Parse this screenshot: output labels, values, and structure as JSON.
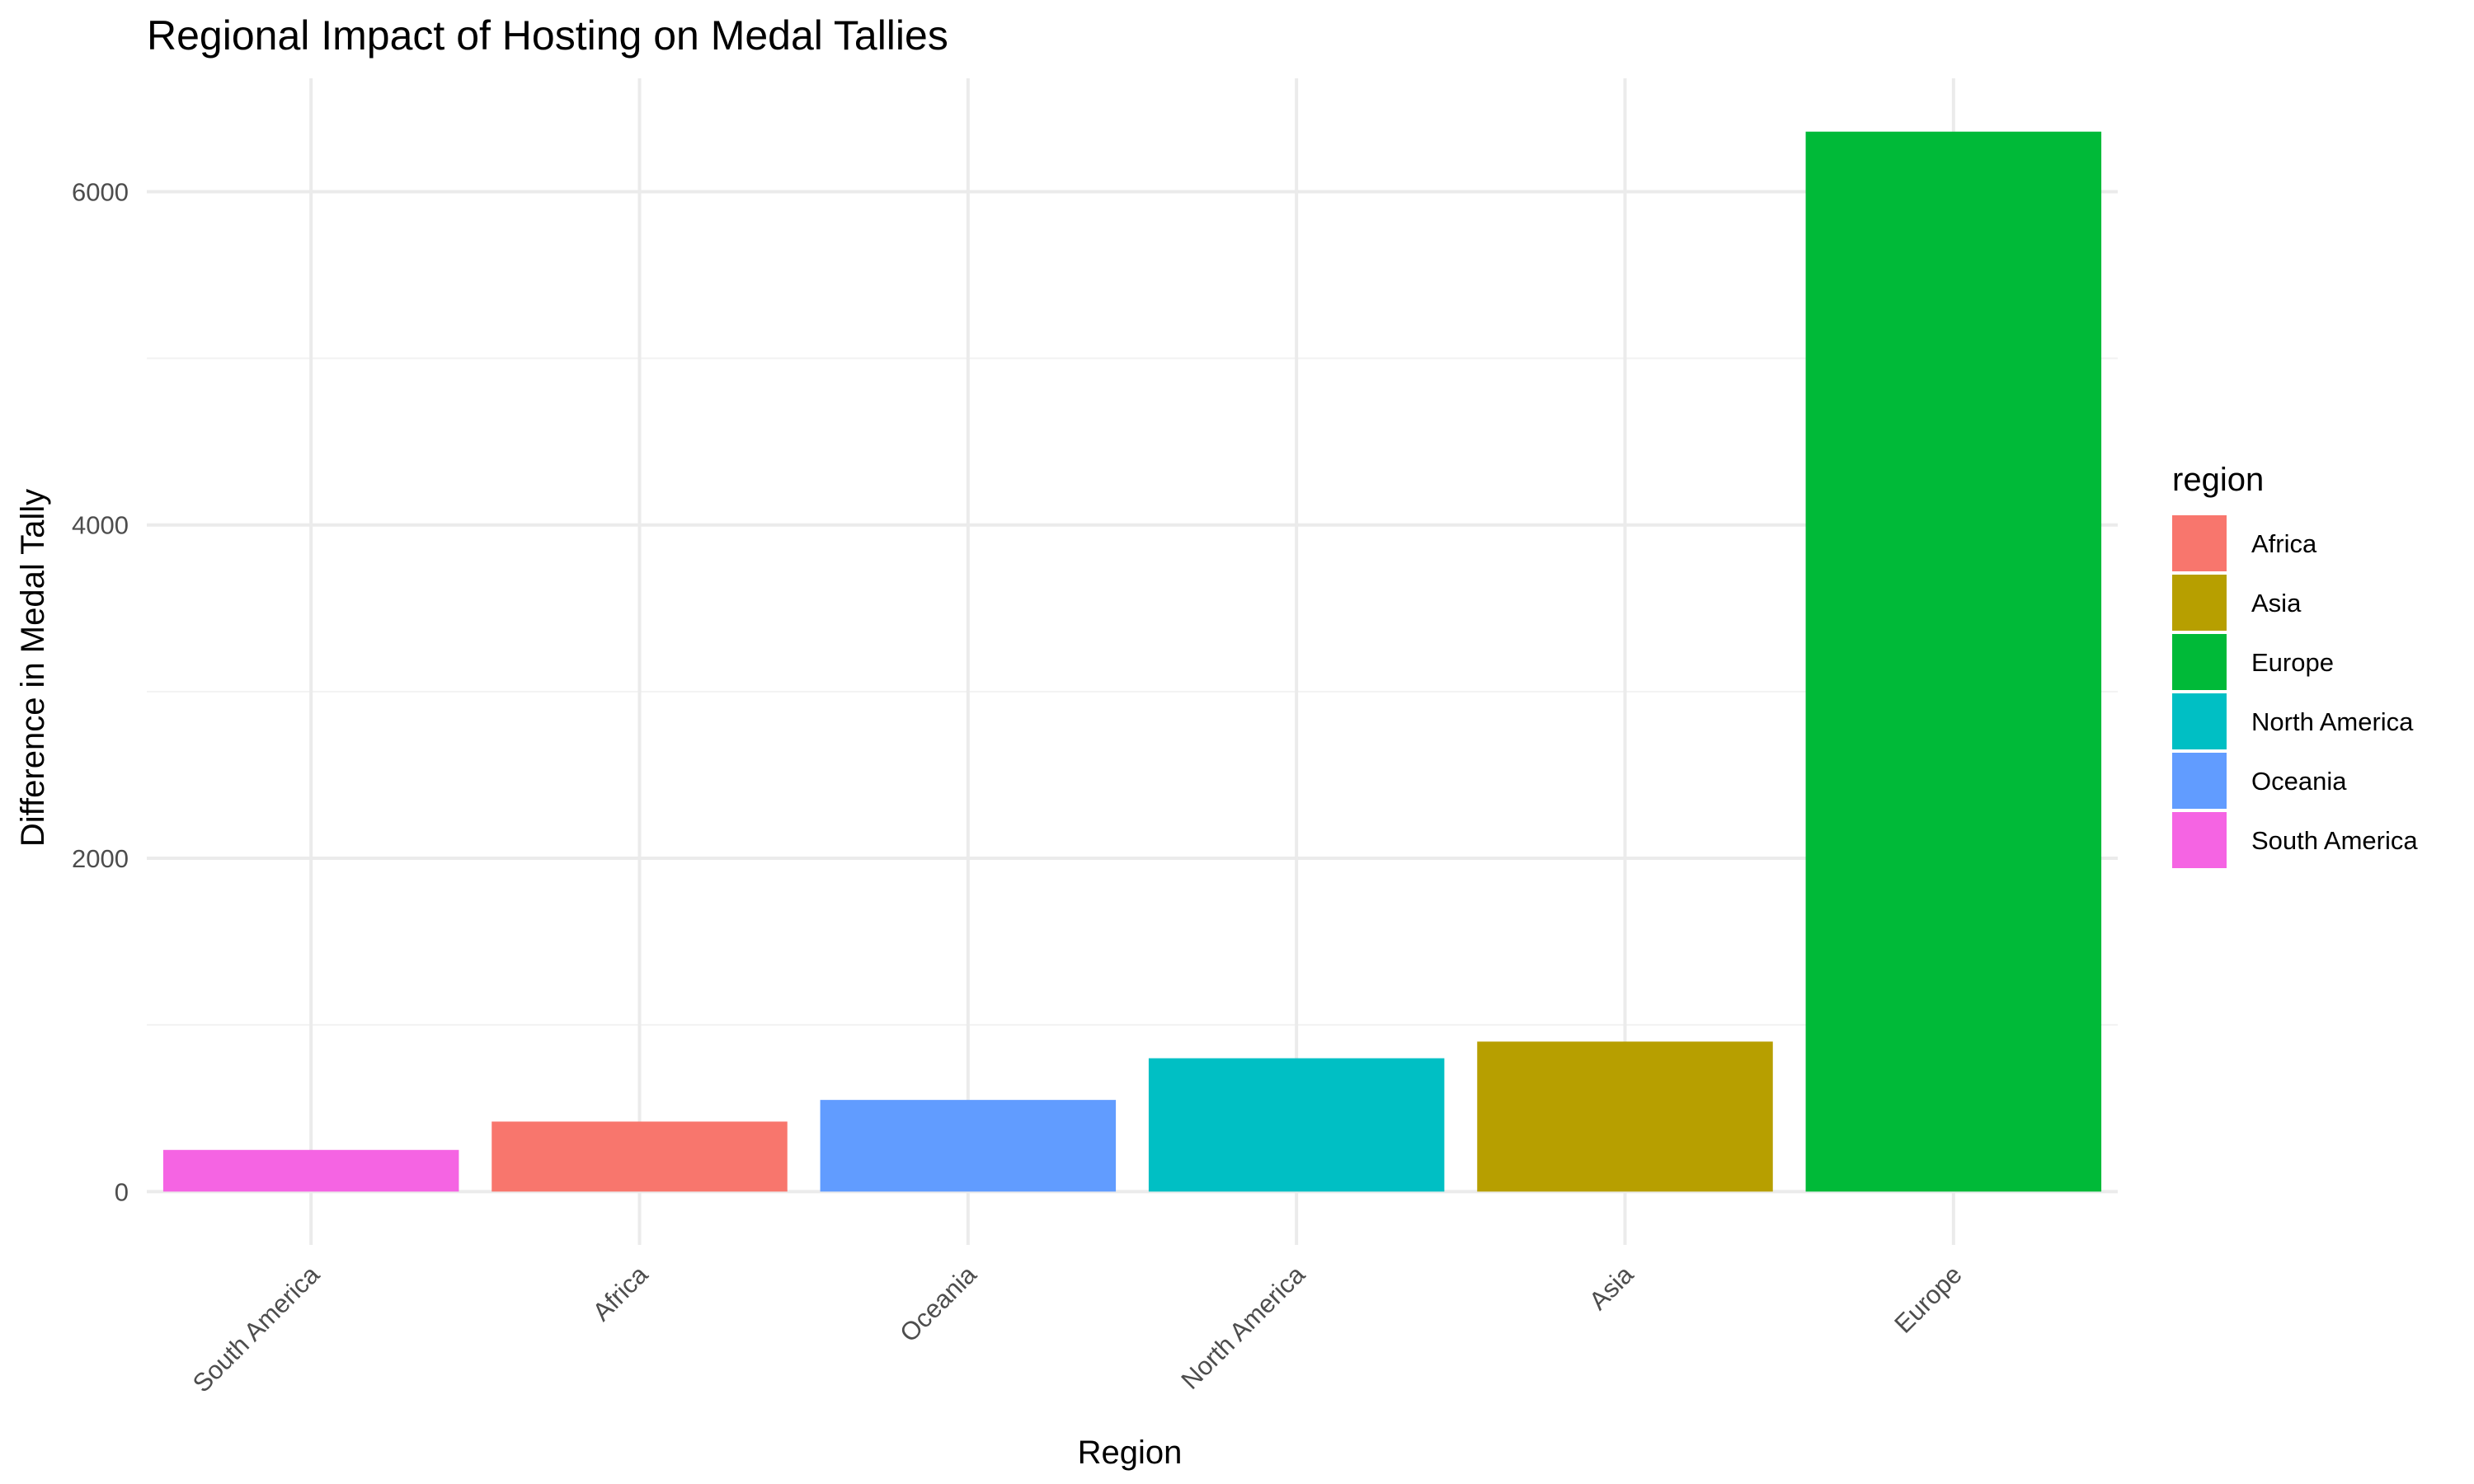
{
  "chart_data": {
    "type": "bar",
    "title": "Regional Impact of Hosting on Medal Tallies",
    "xlabel": "Region",
    "ylabel": "Difference in Medal Tally",
    "categories": [
      "South America",
      "Africa",
      "Oceania",
      "North America",
      "Asia",
      "Europe"
    ],
    "values": [
      250,
      420,
      550,
      800,
      900,
      6360
    ],
    "bar_colors": [
      "#F564E3",
      "#F8766D",
      "#619CFF",
      "#00BFC4",
      "#B79F00",
      "#00BA38"
    ],
    "ylim": [
      -320,
      6680
    ],
    "yticks": [
      0,
      2000,
      4000,
      6000
    ],
    "ytick_labels": [
      "0",
      "2000",
      "4000",
      "6000"
    ],
    "grid": true,
    "legend": {
      "title": "region",
      "placement": "right",
      "items": [
        {
          "label": "Africa",
          "color": "#F8766D"
        },
        {
          "label": "Asia",
          "color": "#B79F00"
        },
        {
          "label": "Europe",
          "color": "#00BA38"
        },
        {
          "label": "North America",
          "color": "#00BFC4"
        },
        {
          "label": "Oceania",
          "color": "#619CFF"
        },
        {
          "label": "South America",
          "color": "#F564E3"
        }
      ]
    }
  }
}
